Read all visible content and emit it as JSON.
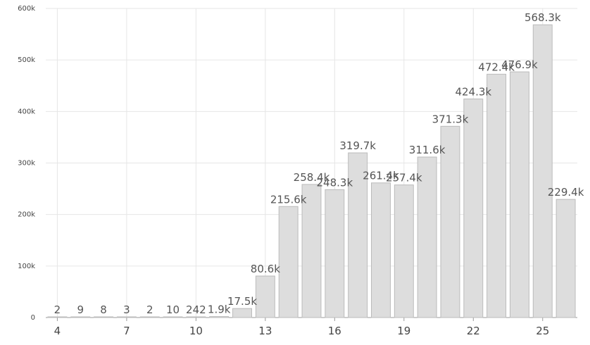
{
  "chart_data": {
    "type": "bar",
    "categories": [
      4,
      5,
      6,
      7,
      8,
      9,
      10,
      11,
      12,
      13,
      14,
      15,
      16,
      17,
      18,
      19,
      20,
      21,
      22,
      23,
      24,
      25,
      26
    ],
    "values": [
      2,
      9,
      8,
      3,
      2,
      10,
      242,
      1900,
      17500,
      80600,
      215600,
      258400,
      248300,
      319700,
      261400,
      257400,
      311600,
      371300,
      424300,
      472400,
      476900,
      568300,
      229400
    ],
    "data_labels": [
      "2",
      "9",
      "8",
      "3",
      "2",
      "10",
      "242",
      "1.9k",
      "17.5k",
      "80.6k",
      "215.6k",
      "258.4k",
      "248.3k",
      "319.7k",
      "261.4k",
      "257.4k",
      "311.6k",
      "371.3k",
      "424.3k",
      "472.4k",
      "476.9k",
      "568.3k",
      "229.4k"
    ],
    "x_ticks": [
      {
        "value": 4,
        "label": "4"
      },
      {
        "value": 7,
        "label": "7"
      },
      {
        "value": 10,
        "label": "10"
      },
      {
        "value": 13,
        "label": "13"
      },
      {
        "value": 16,
        "label": "16"
      },
      {
        "value": 19,
        "label": "19"
      },
      {
        "value": 22,
        "label": "22"
      },
      {
        "value": 25,
        "label": "25"
      }
    ],
    "y_ticks": [
      {
        "value": 0,
        "label": "0"
      },
      {
        "value": 100000,
        "label": "100k"
      },
      {
        "value": 200000,
        "label": "200k"
      },
      {
        "value": 300000,
        "label": "300k"
      },
      {
        "value": 400000,
        "label": "400k"
      },
      {
        "value": 500000,
        "label": "500k"
      },
      {
        "value": 600000,
        "label": "600k"
      }
    ],
    "ylim": [
      0,
      600000
    ],
    "grid": true,
    "bar_color": "#dddddd",
    "bar_border_color": "#bbbbbb"
  }
}
